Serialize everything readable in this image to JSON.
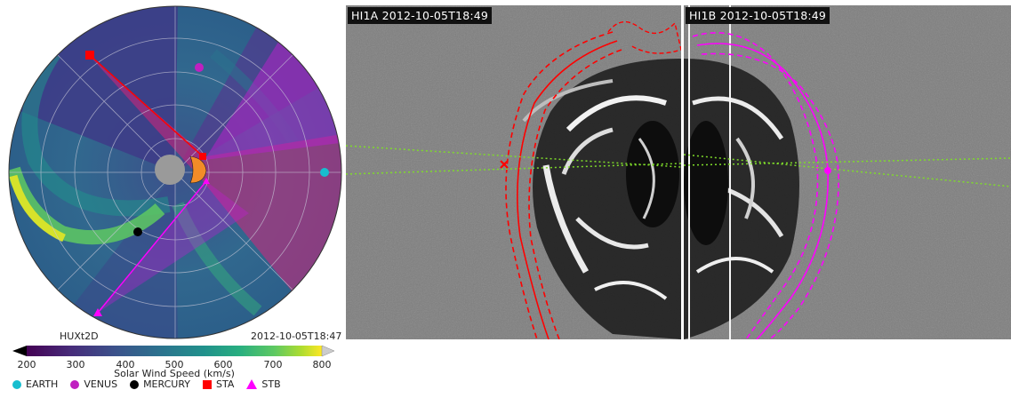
{
  "polar_plot": {
    "model_label": "HUXt2D",
    "timestamp": "2012-10-05T18:47"
  },
  "colorbar": {
    "ticks": [
      "200",
      "300",
      "400",
      "500",
      "600",
      "700",
      "800"
    ],
    "label": "Solar Wind Speed (km/s)"
  },
  "legend": [
    {
      "label": "EARTH",
      "color": "#17becf",
      "marker": "circle"
    },
    {
      "label": "VENUS",
      "color": "#c020c0",
      "marker": "circle"
    },
    {
      "label": "MERCURY",
      "color": "#000000",
      "marker": "circle"
    },
    {
      "label": "STA",
      "color": "#ff0000",
      "marker": "square"
    },
    {
      "label": "STB",
      "color": "#ff00ff",
      "marker": "triangle"
    }
  ],
  "hi1a": {
    "label": "HI1A 2012-10-05T18:49"
  },
  "hi1b": {
    "label": "HI1B 2012-10-05T18:49"
  }
}
